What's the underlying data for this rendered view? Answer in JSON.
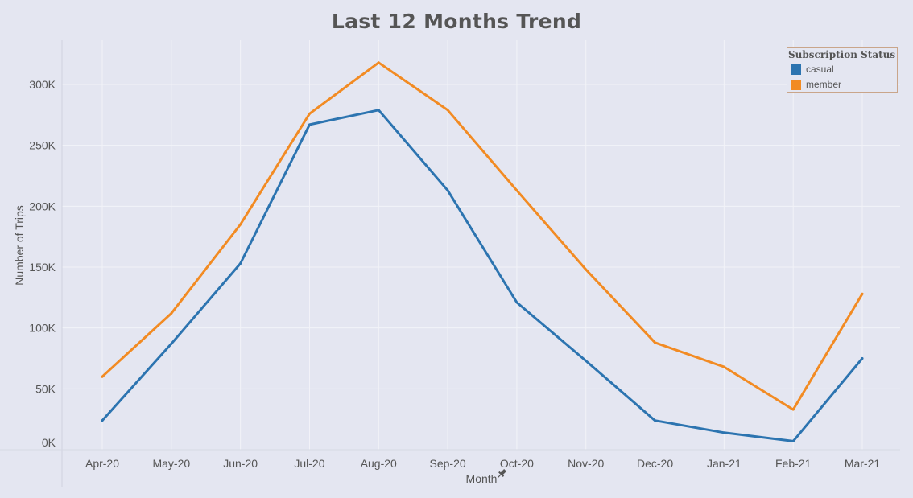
{
  "chart_data": {
    "type": "line",
    "title": "Last 12 Months Trend",
    "xlabel": "Month",
    "ylabel": "Number of Trips",
    "categories": [
      "Apr-20",
      "May-20",
      "Jun-20",
      "Jul-20",
      "Aug-20",
      "Sep-20",
      "Oct-20",
      "Nov-20",
      "Dec-20",
      "Jan-21",
      "Feb-21",
      "Mar-21"
    ],
    "yticks": [
      "0K",
      "50K",
      "100K",
      "150K",
      "200K",
      "250K",
      "300K"
    ],
    "ylim": [
      0,
      330000
    ],
    "grid": true,
    "legend_title": "Subscription Status",
    "legend_position": "top-right",
    "series": [
      {
        "name": "casual",
        "color": "#2c74b0",
        "values": [
          24000,
          87000,
          153000,
          267000,
          279000,
          213000,
          121000,
          73000,
          24000,
          14000,
          7000,
          75000
        ]
      },
      {
        "name": "member",
        "color": "#f28b23",
        "values": [
          60000,
          112000,
          185000,
          276000,
          318000,
          279000,
          213000,
          148000,
          88000,
          68000,
          33000,
          128000
        ]
      }
    ]
  },
  "icons": {
    "axis_pin": "pin-icon",
    "pin_glyph": "✚"
  }
}
